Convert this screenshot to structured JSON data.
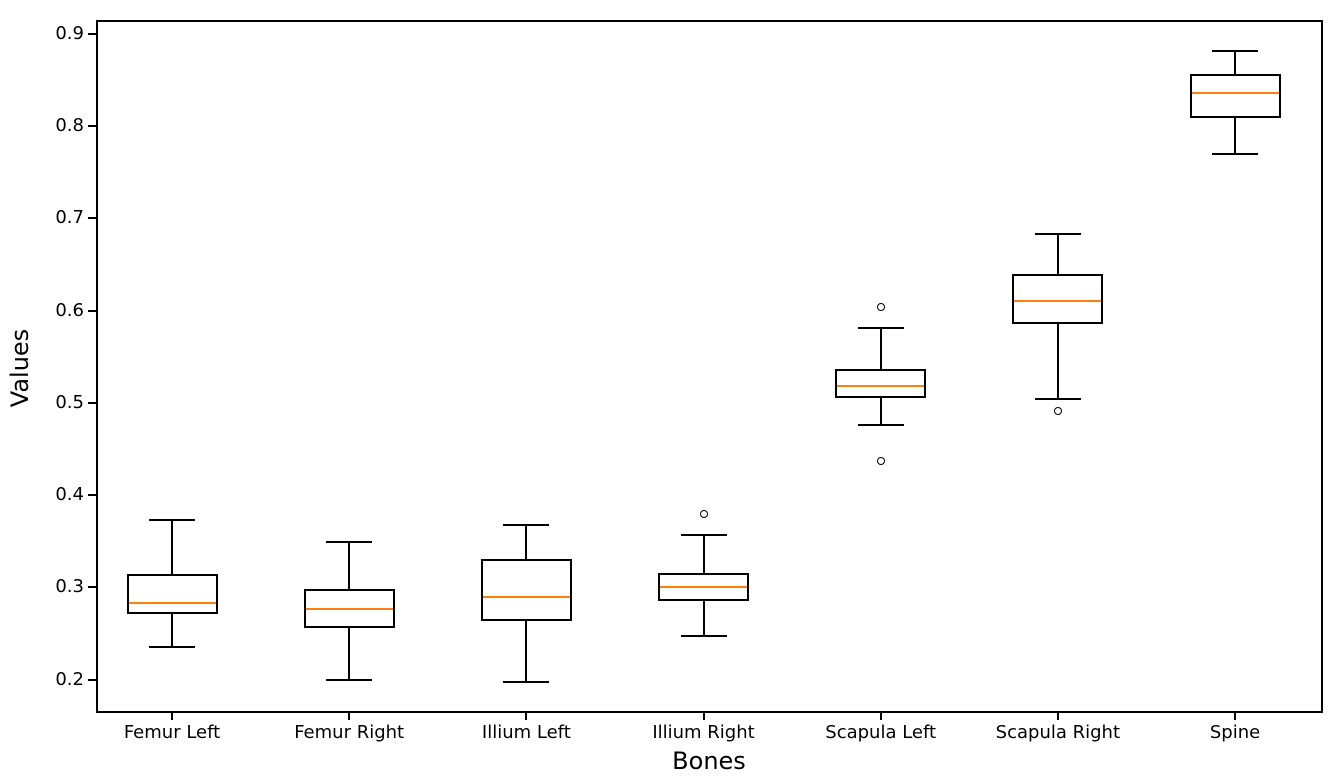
{
  "chart_data": {
    "type": "box",
    "title": "",
    "xlabel": "Bones",
    "ylabel": "Values",
    "categories": [
      "Femur Left",
      "Femur Right",
      "Illium Left",
      "Illium Right",
      "Scapula Left",
      "Scapula Right",
      "Spine"
    ],
    "ylim": [
      0.165,
      0.914
    ],
    "yticks": [
      0.2,
      0.3,
      0.4,
      0.5,
      0.6,
      0.7,
      0.8,
      0.9
    ],
    "ytick_labels": [
      "0.2",
      "0.3",
      "0.4",
      "0.5",
      "0.6",
      "0.7",
      "0.8",
      "0.9"
    ],
    "grid": false,
    "legend": null,
    "colors": {
      "median": "#ff7f0e",
      "box_edge": "#000000",
      "background": "#ffffff"
    },
    "boxes": [
      {
        "label": "Femur Left",
        "whislo": 0.235,
        "q1": 0.271,
        "med": 0.283,
        "q3": 0.315,
        "whishi": 0.373,
        "outliers": []
      },
      {
        "label": "Femur Right",
        "whislo": 0.2,
        "q1": 0.256,
        "med": 0.277,
        "q3": 0.298,
        "whishi": 0.349,
        "outliers": []
      },
      {
        "label": "Illium Left",
        "whislo": 0.197,
        "q1": 0.264,
        "med": 0.29,
        "q3": 0.331,
        "whishi": 0.368,
        "outliers": []
      },
      {
        "label": "Illium Right",
        "whislo": 0.247,
        "q1": 0.285,
        "med": 0.301,
        "q3": 0.316,
        "whishi": 0.357,
        "outliers": [
          0.38
        ]
      },
      {
        "label": "Scapula Left",
        "whislo": 0.476,
        "q1": 0.505,
        "med": 0.518,
        "q3": 0.537,
        "whishi": 0.581,
        "outliers": [
          0.604,
          0.437
        ]
      },
      {
        "label": "Scapula Right",
        "whislo": 0.504,
        "q1": 0.586,
        "med": 0.61,
        "q3": 0.64,
        "whishi": 0.683,
        "outliers": [
          0.491
        ]
      },
      {
        "label": "Spine",
        "whislo": 0.77,
        "q1": 0.809,
        "med": 0.836,
        "q3": 0.857,
        "whishi": 0.881,
        "outliers": []
      }
    ]
  }
}
